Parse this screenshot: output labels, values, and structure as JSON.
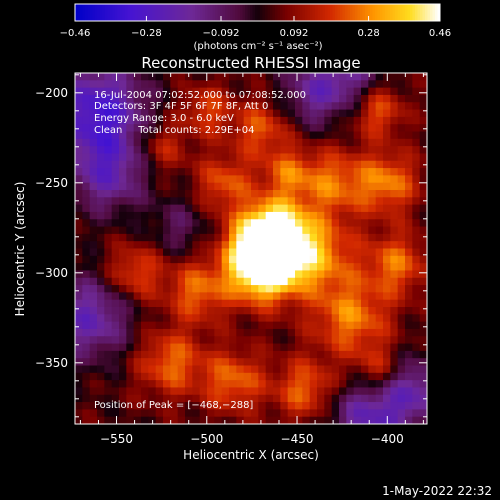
{
  "chart_data": {
    "type": "heatmap",
    "title": "Reconstructed RHESSI Image",
    "xlabel": "Heliocentric X (arcsec)",
    "ylabel": "Heliocentric Y (arcsec)",
    "xlim": [
      -573,
      -378
    ],
    "ylim": [
      -384,
      -189
    ],
    "xticks": [
      -550,
      -500,
      -450,
      -400
    ],
    "yticks": [
      -200,
      -250,
      -300,
      -350
    ],
    "xtick_labels": [
      "−550",
      "−500",
      "−450",
      "−400"
    ],
    "ytick_labels": [
      "−200",
      "−250",
      "−300",
      "−350"
    ],
    "colorbar": {
      "min": -0.46,
      "max": 0.46,
      "ticks": [
        -0.46,
        -0.28,
        -0.092,
        0.092,
        0.28,
        0.46
      ],
      "tick_labels": [
        "−0.46",
        "−0.28",
        "−0.092",
        "0.092",
        "0.28",
        "0.46"
      ],
      "units_text": "(photons cm⁻² s⁻¹ asec⁻²)"
    },
    "annotations": [
      "16-Jul-2004 07:02:52.000 to 07:08:52.000",
      "Detectors: 3F 4F 5F 6F 7F 8F, Att 0",
      "Energy Range: 3.0 - 6.0 keV",
      "Clean     Total counts: 2.29E+04"
    ],
    "peak_label": "Position of Peak = [−468,−288]",
    "peak": {
      "x": -468,
      "y": -288,
      "value": 0.46
    }
  },
  "footer": {
    "timestamp": "1-May-2022 22:32"
  }
}
